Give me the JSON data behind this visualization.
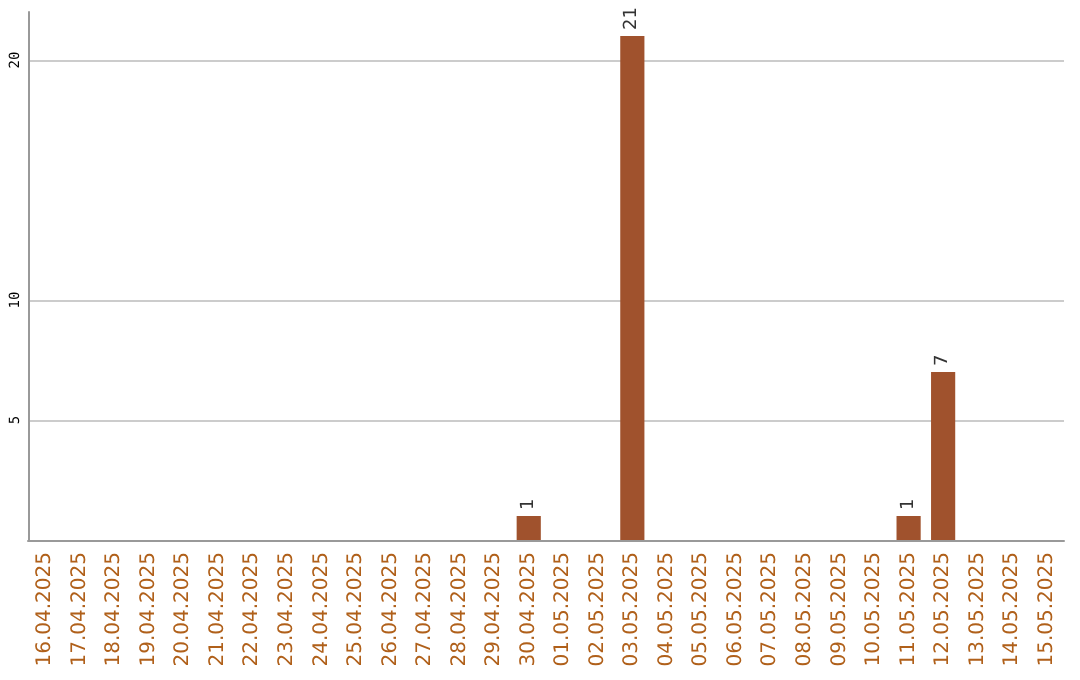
{
  "chart_data": {
    "type": "bar",
    "categories": [
      "16.04.2025",
      "17.04.2025",
      "18.04.2025",
      "19.04.2025",
      "20.04.2025",
      "21.04.2025",
      "22.04.2025",
      "23.04.2025",
      "24.04.2025",
      "25.04.2025",
      "26.04.2025",
      "27.04.2025",
      "28.04.2025",
      "29.04.2025",
      "30.04.2025",
      "01.05.2025",
      "02.05.2025",
      "03.05.2025",
      "04.05.2025",
      "05.05.2025",
      "06.05.2025",
      "07.05.2025",
      "08.05.2025",
      "09.05.2025",
      "10.05.2025",
      "11.05.2025",
      "12.05.2025",
      "13.05.2025",
      "14.05.2025",
      "15.05.2025"
    ],
    "values": [
      0,
      0,
      0,
      0,
      0,
      0,
      0,
      0,
      0,
      0,
      0,
      0,
      0,
      0,
      1,
      0,
      0,
      21,
      0,
      0,
      0,
      0,
      0,
      0,
      0,
      1,
      7,
      0,
      0,
      0
    ],
    "value_labels": [
      null,
      null,
      null,
      null,
      null,
      null,
      null,
      null,
      null,
      null,
      null,
      null,
      null,
      null,
      "1",
      null,
      null,
      "21",
      null,
      null,
      null,
      null,
      null,
      null,
      null,
      "1",
      "7",
      null,
      null,
      null
    ],
    "color": "#a0522d",
    "ylim": [
      0,
      22
    ],
    "yticks": [
      5,
      10,
      20
    ],
    "grid": "y"
  }
}
